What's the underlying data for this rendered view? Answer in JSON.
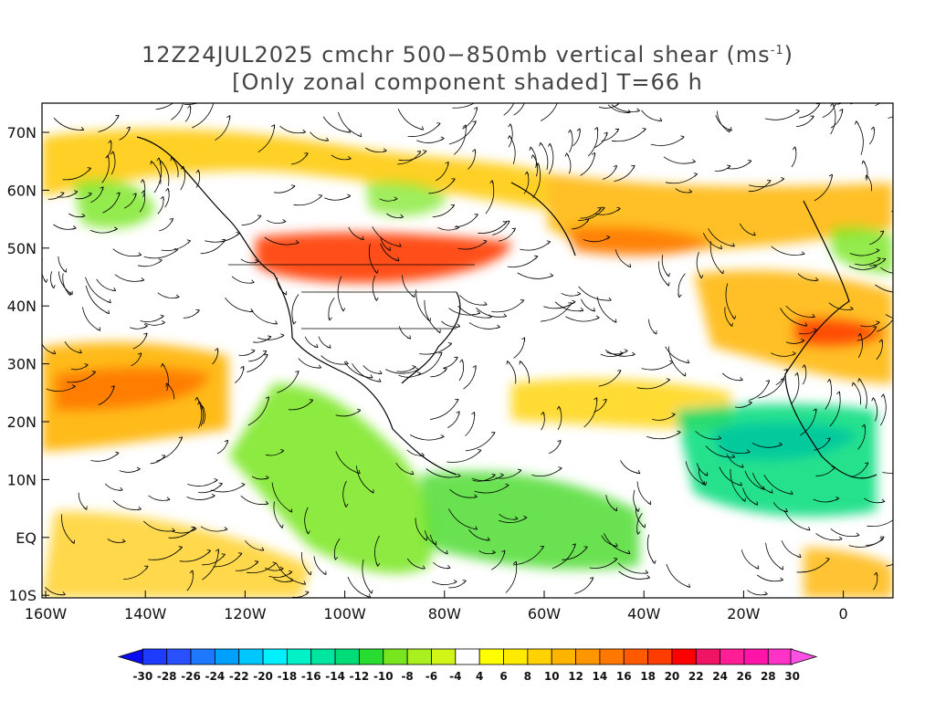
{
  "title": {
    "line1_prefix": "12Z24JUL2025 cmchr 500−850mb vertical shear (ms",
    "line1_sup": "-1",
    "line1_suffix": ")",
    "line2": "[Only zonal component shaded] T=66 h"
  },
  "axes": {
    "y_ticks": [
      "70N",
      "60N",
      "50N",
      "40N",
      "30N",
      "20N",
      "10N",
      "EQ",
      "10S"
    ],
    "x_ticks": [
      "160W",
      "140W",
      "120W",
      "100W",
      "80W",
      "60W",
      "40W",
      "20W",
      "0"
    ]
  },
  "colorbar": {
    "labels": [
      "-30",
      "-28",
      "-26",
      "-24",
      "-22",
      "-20",
      "-18",
      "-16",
      "-14",
      "-12",
      "-10",
      "-8",
      "-6",
      "-4",
      "4",
      "6",
      "8",
      "10",
      "12",
      "14",
      "16",
      "18",
      "20",
      "22",
      "24",
      "26",
      "28",
      "30"
    ],
    "colors": [
      "#0a0af5",
      "#1e3cff",
      "#2850ff",
      "#1e78ff",
      "#00a0ff",
      "#00c8ff",
      "#00f0ff",
      "#00f0c8",
      "#00e6a0",
      "#00dc78",
      "#28dc32",
      "#78e61e",
      "#aaf01e",
      "#d2f519",
      "#ffffff",
      "#ffff00",
      "#ffeb00",
      "#ffd200",
      "#ffb400",
      "#ff9600",
      "#ff7800",
      "#ff5a00",
      "#ff3c00",
      "#ff0000",
      "#f01464",
      "#ff1e96",
      "#ff14aa",
      "#ff32c8",
      "#ff50e6"
    ]
  },
  "colors": {
    "streamline": "#000000",
    "coast": "#000000",
    "frame": "#000000"
  }
}
